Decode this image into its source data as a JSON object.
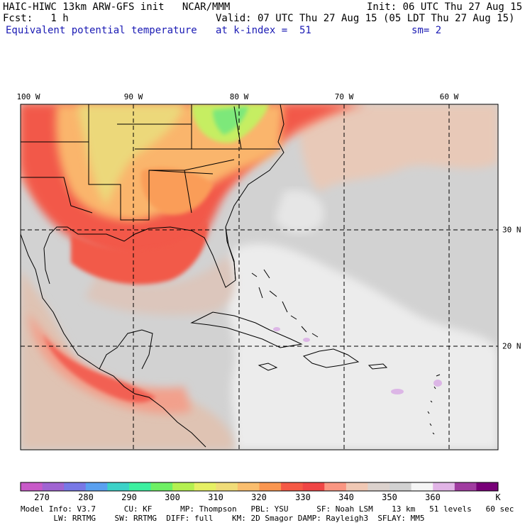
{
  "header": {
    "title": "HAIC-HIWC 13km ARW-GFS init   NCAR/MMM",
    "init": "Init: 06 UTC Thu 27 Aug 15",
    "fcst": "Fcst:   1 h",
    "valid": "Valid: 07 UTC Thu 27 Aug 15 (05 LDT Thu 27 Aug 15)",
    "field": "Equivalent potential temperature",
    "level": "at k-index =  51",
    "smoothing": "sm= 2"
  },
  "map": {
    "longitude_labels": [
      "100 W",
      "90 W",
      "80 W",
      "70 W",
      "60 W"
    ],
    "latitude_labels": [
      "30 N",
      "20 N"
    ],
    "background_color": "#d2d2d2",
    "land_outline_color": "#000000",
    "grid_style": "dashed"
  },
  "colorbar": {
    "unit": "K",
    "tick_labels": [
      "270",
      "280",
      "290",
      "300",
      "310",
      "320",
      "330",
      "340",
      "350",
      "360"
    ],
    "colors": [
      "#c85ac8",
      "#a064d2",
      "#7878e6",
      "#5aa0f0",
      "#3cd2c8",
      "#3cf0a0",
      "#6ef064",
      "#b4f050",
      "#e6f064",
      "#f0dc78",
      "#fabe6e",
      "#fa9650",
      "#f55a46",
      "#f04646",
      "#fa9682",
      "#f0c8b4",
      "#dcd2cd",
      "#d2d2d2",
      "#f5f5f5",
      "#e1b4e6",
      "#a03ca0",
      "#780078"
    ]
  },
  "footer": {
    "line1": "Model Info: V3.7      CU: KF      MP: Thompson   PBL: YSU      SF: Noah LSM    13 km   51 levels   60 sec",
    "line2": "       LW: RRTMG    SW: RRTMG  DIFF: full    KM: 2D Smagor DAMP: Rayleigh3  SFLAY: MM5"
  }
}
